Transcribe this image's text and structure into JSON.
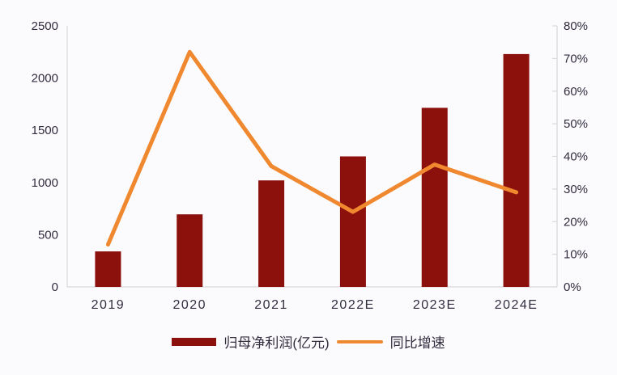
{
  "chart_data": {
    "type": "combo",
    "subtypes": [
      "bar",
      "line"
    ],
    "title": "",
    "categories": [
      "2019",
      "2020",
      "2021",
      "2022E",
      "2023E",
      "2024E"
    ],
    "series": [
      {
        "name": "归母净利润(亿元)",
        "type": "bar",
        "axis": "left",
        "color": "#8c100b",
        "values": [
          340,
          695,
          1020,
          1250,
          1715,
          2230
        ]
      },
      {
        "name": "同比增速",
        "type": "line",
        "axis": "right",
        "color": "#f0882f",
        "unit": "%",
        "values": [
          13,
          72,
          37,
          23,
          37.5,
          29
        ]
      }
    ],
    "left_axis": {
      "min": 0,
      "max": 2500,
      "ticks": [
        0,
        500,
        1000,
        1500,
        2000,
        2500
      ]
    },
    "right_axis": {
      "min": 0,
      "max": 80,
      "ticks": [
        0,
        10,
        20,
        30,
        40,
        50,
        60,
        70,
        80
      ],
      "format": "percent"
    },
    "grid": false,
    "legend_position": "bottom"
  },
  "colors": {
    "bar": "#8c100b",
    "line": "#f0882f",
    "axis_line": "#d9d9d9",
    "text": "#332b3e",
    "background": "#fbfbfd"
  }
}
